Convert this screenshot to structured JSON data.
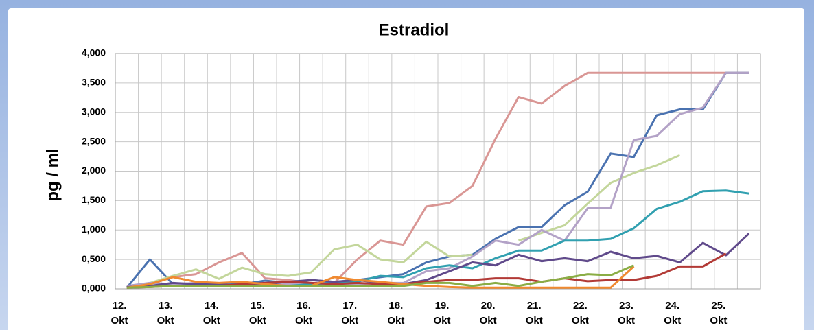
{
  "chart_data": {
    "type": "line",
    "title": "Estradiol",
    "y_label": "pg / ml",
    "categories": [
      "12.\nOkt",
      null,
      "13.\nOkt",
      null,
      "14.\nOkt",
      null,
      "15.\nOkt",
      null,
      "16.\nOkt",
      null,
      "17.\nOkt",
      null,
      "18.\nOkt",
      null,
      "19.\nOkt",
      null,
      "20.\nOkt",
      null,
      "21.\nOkt",
      null,
      "22.\nOkt",
      null,
      "23.\nOkt",
      null,
      "24.\nOkt",
      null,
      "25.\nOkt",
      null
    ],
    "ylim": [
      0,
      4
    ],
    "yticks": [
      {
        "value": 0,
        "label": "0,000"
      },
      {
        "value": 0.5,
        "label": "0,500"
      },
      {
        "value": 1,
        "label": "1,000"
      },
      {
        "value": 1.5,
        "label": "1,500"
      },
      {
        "value": 2,
        "label": "2,000"
      },
      {
        "value": 2.5,
        "label": "2,500"
      },
      {
        "value": 3,
        "label": "3,000"
      },
      {
        "value": 3.5,
        "label": "3,500"
      },
      {
        "value": 4,
        "label": "4,000"
      }
    ],
    "grid": true,
    "series": [
      {
        "color": "#d99694",
        "values": [
          0.02,
          0.08,
          0.2,
          0.25,
          0.45,
          0.61,
          0.18,
          0.15,
          0.1,
          0.1,
          0.5,
          0.82,
          0.75,
          1.4,
          1.46,
          1.75,
          2.55,
          3.26,
          3.15,
          3.45,
          3.67,
          3.67,
          3.67,
          3.67,
          3.67,
          3.67,
          3.67,
          3.67
        ]
      },
      {
        "color": "#4a72b0",
        "values": [
          0.02,
          0.5,
          0.08,
          0.08,
          0.08,
          0.08,
          0.14,
          0.1,
          0.15,
          0.12,
          0.15,
          0.2,
          0.25,
          0.45,
          0.55,
          0.58,
          0.85,
          1.05,
          1.05,
          1.42,
          1.65,
          2.3,
          2.24,
          2.95,
          3.05,
          3.05,
          3.67,
          3.67
        ]
      },
      {
        "color": "#c3d69b",
        "values": [
          0.03,
          0.1,
          0.22,
          0.33,
          0.17,
          0.36,
          0.25,
          0.22,
          0.28,
          0.67,
          0.75,
          0.5,
          0.45,
          0.8,
          0.55,
          0.58,
          null,
          0.82,
          0.95,
          1.08,
          1.45,
          1.8,
          1.97,
          2.1,
          2.27,
          null,
          null,
          null
        ]
      },
      {
        "color": "#b3a2c7",
        "values": [
          0.05,
          0.1,
          0.08,
          0.1,
          0.08,
          0.05,
          0.05,
          0.08,
          0.1,
          0.05,
          0.08,
          0.1,
          0.1,
          0.3,
          0.35,
          0.55,
          0.82,
          0.75,
          1.0,
          0.82,
          1.37,
          1.38,
          2.53,
          2.6,
          2.97,
          3.08,
          3.67,
          3.67
        ]
      },
      {
        "color": "#31a0b0",
        "values": [
          0.02,
          0.05,
          0.05,
          0.05,
          0.05,
          0.05,
          0.05,
          0.05,
          0.08,
          0.1,
          0.12,
          0.22,
          0.2,
          0.35,
          0.4,
          0.35,
          0.52,
          0.65,
          0.65,
          0.82,
          0.82,
          0.85,
          1.03,
          1.36,
          1.48,
          1.66,
          1.67,
          1.62
        ]
      },
      {
        "color": "#604a8b",
        "values": [
          0.03,
          0.05,
          0.1,
          0.08,
          0.08,
          0.05,
          0.08,
          0.12,
          0.15,
          0.12,
          0.15,
          0.1,
          0.08,
          0.15,
          0.3,
          0.45,
          0.4,
          0.58,
          0.47,
          0.52,
          0.47,
          0.63,
          0.52,
          0.56,
          0.45,
          0.78,
          0.57,
          0.94
        ]
      },
      {
        "color": "#b23a36",
        "values": [
          0.02,
          0.03,
          0.05,
          0.05,
          0.05,
          0.08,
          0.1,
          0.12,
          0.1,
          0.08,
          0.1,
          0.08,
          0.08,
          0.12,
          0.15,
          0.15,
          0.18,
          0.18,
          0.12,
          0.18,
          0.13,
          0.15,
          0.15,
          0.22,
          0.38,
          0.38,
          0.6,
          null
        ]
      },
      {
        "color": "#f08a30",
        "values": [
          0.02,
          0.08,
          0.2,
          0.12,
          0.1,
          0.12,
          0.08,
          0.05,
          0.05,
          0.2,
          0.15,
          0.12,
          0.08,
          0.05,
          0.03,
          0.02,
          0.02,
          0.02,
          0.02,
          0.02,
          0.02,
          0.02,
          0.38,
          null,
          null,
          null,
          null,
          null
        ]
      },
      {
        "color": "#8aad45",
        "values": [
          0.02,
          0.03,
          0.05,
          0.05,
          0.05,
          0.05,
          0.05,
          0.05,
          0.05,
          0.05,
          0.05,
          0.05,
          0.05,
          0.1,
          0.1,
          0.05,
          0.1,
          0.05,
          0.12,
          0.18,
          0.25,
          0.23,
          0.4,
          null,
          null,
          null,
          null,
          null
        ]
      }
    ]
  }
}
